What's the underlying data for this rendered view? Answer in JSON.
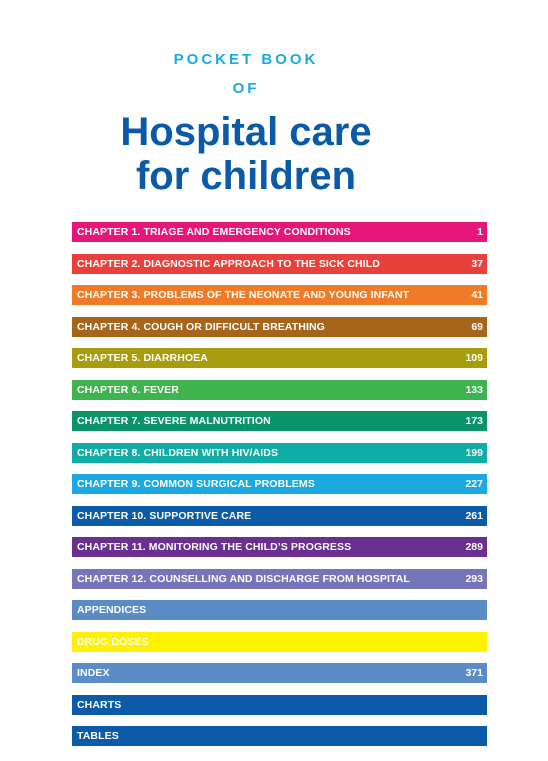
{
  "header": {
    "pretitle_line1": "POCKET BOOK",
    "pretitle_line2": "OF",
    "title_line1": "Hospital care",
    "title_line2": "for children"
  },
  "toc": {
    "items": [
      {
        "label": "CHAPTER 1. TRIAGE AND EMERGENCY CONDITIONS",
        "page": "1",
        "color": "#e5157a"
      },
      {
        "label": "CHAPTER 2. DIAGNOSTIC APPROACH TO THE SICK CHILD",
        "page": "37",
        "color": "#e8413c"
      },
      {
        "label": "CHAPTER 3. PROBLEMS OF THE NEONATE AND YOUNG INFANT",
        "page": "41",
        "color": "#f07b26"
      },
      {
        "label": "CHAPTER 4. COUGH OR DIFFICULT BREATHING",
        "page": "69",
        "color": "#a7641b"
      },
      {
        "label": "CHAPTER 5. DIARRHOEA",
        "page": "109",
        "color": "#a79c0c"
      },
      {
        "label": "CHAPTER 6. FEVER",
        "page": "133",
        "color": "#3fb34e"
      },
      {
        "label": "CHAPTER 7. SEVERE MALNUTRITION",
        "page": "173",
        "color": "#0b9469"
      },
      {
        "label": "CHAPTER 8. CHILDREN WITH HIV/AIDS",
        "page": "199",
        "color": "#0fada5"
      },
      {
        "label": "CHAPTER 9. COMMON SURGICAL PROBLEMS",
        "page": "227",
        "color": "#1ba9e1"
      },
      {
        "label": "CHAPTER 10. SUPPORTIVE CARE",
        "page": "261",
        "color": "#0b5ba8"
      },
      {
        "label": "CHAPTER 11. MONITORING THE CHILD’S PROGRESS",
        "page": "289",
        "color": "#6a2f91"
      },
      {
        "label": "CHAPTER 12. COUNSELLING AND DISCHARGE FROM HOSPITAL",
        "page": "293",
        "color": "#7576b9"
      },
      {
        "label": "APPENDICES",
        "page": "",
        "color": "#5c8cc5"
      },
      {
        "label": "DRUG  DOSES",
        "page": "",
        "color": "#fff200"
      },
      {
        "label": "INDEX",
        "page": "371",
        "color": "#5c8cc5"
      },
      {
        "label": "CHARTS",
        "page": "",
        "color": "#0b5ba8"
      },
      {
        "label": "TABLES",
        "page": "",
        "color": "#0b5ba8"
      }
    ]
  }
}
